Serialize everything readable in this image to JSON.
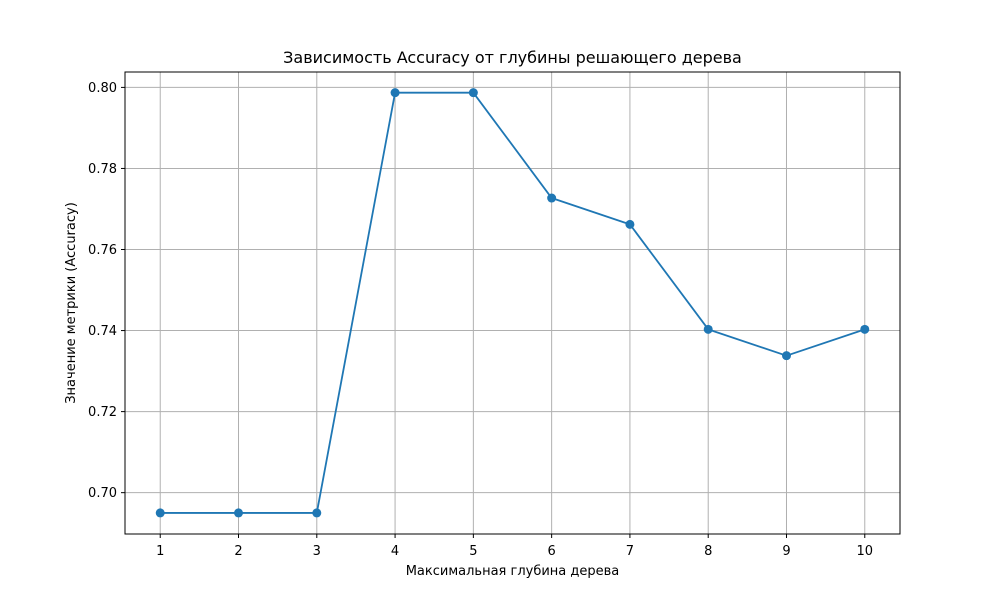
{
  "chart_data": {
    "type": "line",
    "title": "Зависимость Accuracy от глубины решающего дерева",
    "xlabel": "Максимальная глубина дерева",
    "ylabel": "Значение метрики (Accuracy)",
    "x": [
      1,
      2,
      3,
      4,
      5,
      6,
      7,
      8,
      9,
      10
    ],
    "series": [
      {
        "values": [
          0.695,
          0.695,
          0.695,
          0.7987,
          0.7987,
          0.7727,
          0.7662,
          0.7403,
          0.7338,
          0.7403
        ]
      }
    ],
    "xlim": [
      0.55,
      10.45
    ],
    "ylim": [
      0.6898,
      0.8038
    ],
    "xticks": [
      1,
      2,
      3,
      4,
      5,
      6,
      7,
      8,
      9,
      10
    ],
    "yticks": [
      0.7,
      0.72,
      0.74,
      0.76,
      0.78,
      0.8
    ],
    "ytick_labels": [
      "0.70",
      "0.72",
      "0.74",
      "0.76",
      "0.78",
      "0.80"
    ],
    "grid": true,
    "marker": "circle",
    "colors": {
      "line": "#1f77b4",
      "grid": "#b0b0b0",
      "axes": "#000000"
    }
  }
}
